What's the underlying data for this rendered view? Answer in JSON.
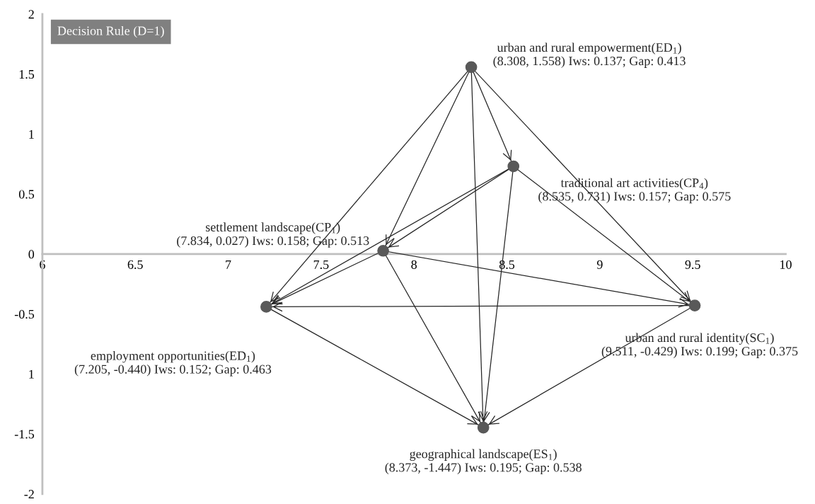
{
  "chart_data": {
    "type": "scatter",
    "title": "Decision Rule (D=1)",
    "xlim": [
      6,
      10
    ],
    "xticks": [
      6,
      6.5,
      7,
      7.5,
      8,
      8.5,
      9,
      9.5,
      10
    ],
    "ylim": [
      -2,
      2
    ],
    "yticks": [
      -2,
      -1.5,
      {
        "value": -1,
        "label": "1"
      },
      -0.5,
      0,
      0.5,
      1,
      1.5,
      2
    ],
    "grid": false,
    "marker": "circle",
    "series": [
      {
        "type": "scatter",
        "color": "#595959",
        "x": [
          8.308,
          8.535,
          7.834,
          9.511,
          7.205,
          8.373
        ],
        "values": [
          1.558,
          0.731,
          0.027,
          -0.429,
          -0.44,
          -1.447
        ],
        "value_labels": [
          "urban and rural empowerment(ED$_{1}$)\n(8.308, 1.558) Iws: 0.137; Gap: 0.413",
          "traditional art activities(CP$_{4}$)\n(8.535, 0.731) Iws: 0.157; Gap: 0.575",
          "settlement landscape(CP$_{1}$)\n(7.834, 0.027) Iws: 0.158; Gap: 0.513",
          "urban and rural identity(SC$_{1}$)\n(9.511, -0.429) Iws: 0.199; Gap: 0.375",
          "employment opportunities(ED$_{1}$)\n(7.205, -0.440) Iws: 0.152; Gap: 0.463",
          "geographical landscape(ES$_{1}$)\n(8.373, -1.447) Iws: 0.195; Gap: 0.538"
        ]
      },
      {
        "type": "line",
        "marker": "none",
        "color": "#262626",
        "x": [
          8.308,
          8.535
        ],
        "values": [
          1.558,
          0.731
        ]
      },
      {
        "type": "line",
        "marker": "none",
        "color": "#262626",
        "x": [
          8.308,
          7.834
        ],
        "values": [
          1.558,
          0.027
        ]
      },
      {
        "type": "line",
        "marker": "none",
        "color": "#262626",
        "x": [
          8.308,
          9.511
        ],
        "values": [
          1.558,
          -0.429
        ]
      },
      {
        "type": "line",
        "marker": "none",
        "color": "#262626",
        "x": [
          8.308,
          7.205
        ],
        "values": [
          1.558,
          -0.44
        ]
      },
      {
        "type": "line",
        "marker": "none",
        "color": "#262626",
        "x": [
          8.308,
          8.373
        ],
        "values": [
          1.558,
          -1.447
        ]
      },
      {
        "type": "line",
        "marker": "none",
        "color": "#262626",
        "x": [
          8.535,
          7.834
        ],
        "values": [
          0.731,
          0.027
        ]
      },
      {
        "type": "line",
        "marker": "none",
        "color": "#262626",
        "x": [
          8.535,
          9.511
        ],
        "values": [
          0.731,
          -0.429
        ]
      },
      {
        "type": "line",
        "marker": "none",
        "color": "#262626",
        "x": [
          8.535,
          7.205
        ],
        "values": [
          0.731,
          -0.44
        ]
      },
      {
        "type": "line",
        "marker": "none",
        "color": "#262626",
        "x": [
          8.535,
          8.373
        ],
        "values": [
          0.731,
          -1.447
        ]
      },
      {
        "type": "line",
        "marker": "none",
        "color": "#262626",
        "x": [
          7.834,
          9.511
        ],
        "values": [
          0.027,
          -0.429
        ]
      },
      {
        "type": "line",
        "marker": "none",
        "color": "#262626",
        "x": [
          7.834,
          7.205
        ],
        "values": [
          0.027,
          -0.44
        ]
      },
      {
        "type": "line",
        "marker": "none",
        "color": "#262626",
        "x": [
          7.834,
          8.373
        ],
        "values": [
          0.027,
          -1.447
        ]
      },
      {
        "type": "line",
        "marker": "none",
        "color": "#262626",
        "x": [
          9.511,
          7.205
        ],
        "values": [
          -0.429,
          -0.44
        ]
      },
      {
        "type": "line",
        "marker": "none",
        "color": "#262626",
        "x": [
          9.511,
          8.373
        ],
        "values": [
          -0.429,
          -1.447
        ]
      },
      {
        "type": "line",
        "marker": "none",
        "color": "#262626",
        "x": [
          7.205,
          8.373
        ],
        "values": [
          -0.44,
          -1.447
        ]
      }
    ]
  }
}
